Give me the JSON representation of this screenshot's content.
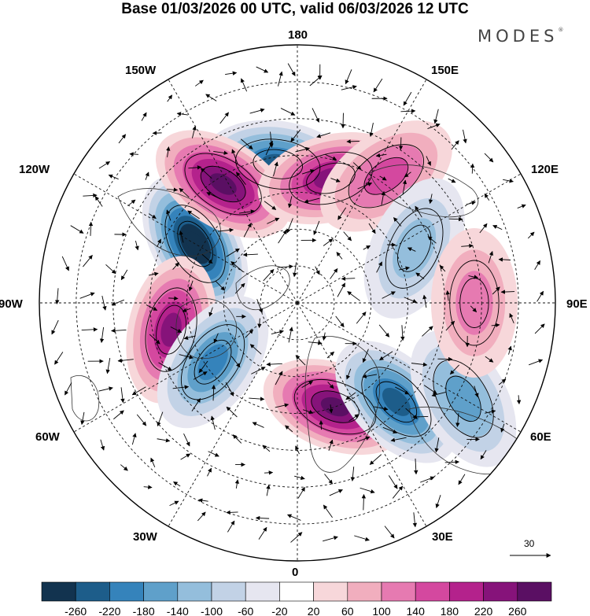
{
  "title": "Base 01/03/2026 00 UTC, valid 06/03/2026 12 UTC",
  "brand": "MODES",
  "brand_mark": "®",
  "longitude_labels": {
    "top": "180",
    "bottom": "0",
    "left": "90W",
    "right": "90E",
    "w150": "150W",
    "w120": "120W",
    "w60": "60W",
    "w30": "30W",
    "e150": "150E",
    "e120": "120E",
    "e60": "60E",
    "e30": "30E"
  },
  "wind_scale": {
    "value": "30",
    "unit_label": "30"
  },
  "colorbar": {
    "ticks": [
      "-260",
      "-220",
      "-180",
      "-140",
      "-100",
      "-60",
      "-20",
      "20",
      "60",
      "100",
      "140",
      "180",
      "220",
      "260"
    ],
    "colors": [
      "#12334f",
      "#1d5d8a",
      "#3583bb",
      "#5fa0ca",
      "#94bedc",
      "#c2d2e6",
      "#e6e6f0",
      "#ffffff",
      "#f7d7da",
      "#f1aebe",
      "#e67ab1",
      "#d4489f",
      "#b4228c",
      "#86137a",
      "#5a0f63"
    ]
  },
  "colors": {
    "land": "#333333",
    "grid": "#111111"
  },
  "anomaly_centers": [
    {
      "name": "low-120w",
      "lon": -120,
      "lat": 58,
      "value": -300
    },
    {
      "name": "low-170w",
      "lon": -172,
      "lat": 52,
      "value": -230
    },
    {
      "name": "high-150w",
      "lon": -148,
      "lat": 52,
      "value": 250
    },
    {
      "name": "high-160e",
      "lon": 165,
      "lat": 55,
      "value": 240
    },
    {
      "name": "high-140e",
      "lon": 145,
      "lat": 48,
      "value": 150
    },
    {
      "name": "low-115e",
      "lon": 115,
      "lat": 55,
      "value": -120
    },
    {
      "name": "high-80w",
      "lon": -78,
      "lat": 55,
      "value": 230
    },
    {
      "name": "low-50w",
      "lon": -55,
      "lat": 62,
      "value": -170
    },
    {
      "name": "high-20e",
      "lon": 20,
      "lat": 60,
      "value": 250
    },
    {
      "name": "low-45e",
      "lon": 45,
      "lat": 52,
      "value": -210
    },
    {
      "name": "low-60e",
      "lon": 60,
      "lat": 38,
      "value": -130
    },
    {
      "name": "high-90e",
      "lon": 90,
      "lat": 42,
      "value": 90
    }
  ]
}
